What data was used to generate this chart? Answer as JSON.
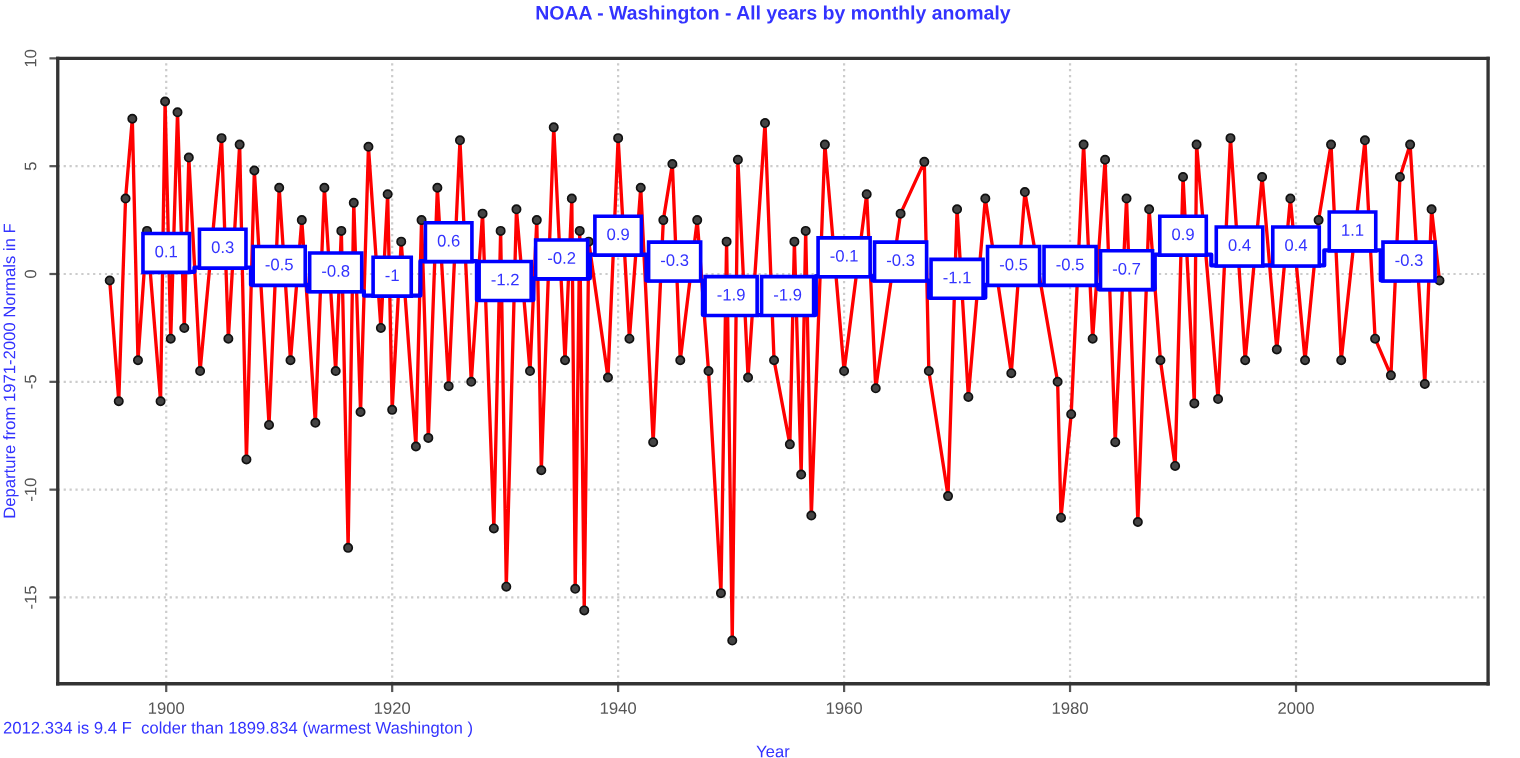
{
  "chart_data": {
    "type": "line",
    "title": "NOAA - Washington - All years by monthly anomaly",
    "xlabel": "Year",
    "ylabel": "Departure from 1971-2000 Normals in F",
    "annotations": [
      "2012.334 is 9.4 F  colder than 1899.834 (warmest Washington )"
    ],
    "xlim": [
      1890.4,
      2017
    ],
    "ylim": [
      -19,
      10
    ],
    "xticks": [
      1900,
      1920,
      1940,
      1960,
      1980,
      2000
    ],
    "yticks": [
      -15,
      -10,
      -5,
      0,
      5,
      10
    ],
    "grid": true,
    "legend": false,
    "series": [
      {
        "color": "#ff0000",
        "marker": "circle",
        "line_style": "solid",
        "x": [
          1895.0,
          1895.8,
          1896.4,
          1897.0,
          1897.5,
          1898.3,
          1899.5,
          1899.9,
          1900.4,
          1901.0,
          1901.6,
          1902.0,
          1903.0,
          1904.9,
          1905.5,
          1906.5,
          1907.1,
          1907.8,
          1909.1,
          1910.0,
          1911.0,
          1912.0,
          1913.2,
          1914.0,
          1915.0,
          1915.5,
          1916.1,
          1916.6,
          1917.2,
          1917.9,
          1919.0,
          1919.6,
          1920.0,
          1920.8,
          1922.1,
          1922.6,
          1923.2,
          1924.0,
          1925.0,
          1926.0,
          1927.0,
          1928.0,
          1929.0,
          1929.6,
          1930.1,
          1931.0,
          1932.2,
          1932.8,
          1933.2,
          1934.3,
          1935.3,
          1935.9,
          1936.2,
          1936.6,
          1937.0,
          1937.4,
          1939.1,
          1940.0,
          1941.0,
          1942.0,
          1943.1,
          1944.0,
          1944.8,
          1945.5,
          1947.0,
          1948.0,
          1949.1,
          1949.6,
          1950.1,
          1950.6,
          1951.5,
          1953.0,
          1953.8,
          1955.2,
          1955.6,
          1956.2,
          1956.6,
          1957.1,
          1958.3,
          1960.0,
          1962.0,
          1962.8,
          1965.0,
          1967.1,
          1967.5,
          1969.2,
          1970.0,
          1971.0,
          1972.5,
          1974.8,
          1976.0,
          1978.9,
          1979.2,
          1980.1,
          1981.2,
          1982.0,
          1983.1,
          1984.0,
          1985.0,
          1986.0,
          1987.0,
          1988.0,
          1989.3,
          1990.0,
          1991.0,
          1991.2,
          1993.1,
          1994.2,
          1995.5,
          1997.0,
          1998.3,
          1999.5,
          2000.8,
          2002.0,
          2003.1,
          2004.0,
          2006.1,
          2007.0,
          2008.4,
          2009.2,
          2010.1,
          2011.4,
          2012.0,
          2012.7
        ],
        "values": [
          -0.3,
          -5.9,
          3.5,
          7.2,
          -4.0,
          2.0,
          -5.9,
          8.0,
          -3.0,
          7.5,
          -2.5,
          5.4,
          -4.5,
          6.3,
          -3.0,
          6.0,
          -8.6,
          4.8,
          -7.0,
          4.0,
          -4.0,
          2.5,
          -6.9,
          4.0,
          -4.5,
          2.0,
          -12.7,
          3.3,
          -6.4,
          5.9,
          -2.5,
          3.7,
          -6.3,
          1.5,
          -8.0,
          2.5,
          -7.6,
          4.0,
          -5.2,
          6.2,
          -5.0,
          2.8,
          -11.8,
          2.0,
          -14.5,
          3.0,
          -4.5,
          2.5,
          -9.1,
          6.8,
          -4.0,
          3.5,
          -14.6,
          2.0,
          -15.6,
          1.5,
          -4.8,
          6.3,
          -3.0,
          4.0,
          -7.8,
          2.5,
          5.1,
          -4.0,
          2.5,
          -4.5,
          -14.8,
          1.5,
          -17.0,
          5.3,
          -4.8,
          7.0,
          -4.0,
          -7.9,
          1.5,
          -9.3,
          2.0,
          -11.2,
          6.0,
          -4.5,
          3.7,
          -5.3,
          2.8,
          5.2,
          -4.5,
          -10.3,
          3.0,
          -5.7,
          3.5,
          -4.6,
          3.8,
          -5.0,
          -11.3,
          -6.5,
          6.0,
          -3.0,
          5.3,
          -7.8,
          3.5,
          -11.5,
          3.0,
          -4.0,
          -8.9,
          4.5,
          -6.0,
          6.0,
          -5.8,
          6.3,
          -4.0,
          4.5,
          -3.5,
          3.5,
          -4.0,
          2.5,
          6.0,
          -4.0,
          6.2,
          -3.0,
          -4.7,
          4.5,
          6.0,
          -5.1,
          3.0,
          -0.3
        ]
      },
      {
        "type": "step",
        "color": "#0000ff",
        "marker": "none",
        "x": [
          1900,
          1905,
          1910,
          1915,
          1920,
          1925,
          1930,
          1935,
          1940,
          1945,
          1950,
          1955,
          1960,
          1965,
          1970,
          1975,
          1980,
          1985,
          1990,
          1995,
          2000,
          2005,
          2010
        ],
        "values": [
          0.1,
          0.3,
          -0.5,
          -0.8,
          -1,
          0.6,
          -1.2,
          -0.2,
          0.9,
          -0.3,
          -1.9,
          -1.9,
          -0.1,
          -0.3,
          -1.1,
          -0.5,
          -0.5,
          -0.7,
          0.9,
          0.4,
          0.4,
          1.1,
          -0.3
        ],
        "value_labels": [
          "0.1",
          "0.3",
          "-0.5",
          "-0.8",
          "-1",
          "0.6",
          "-1.2",
          "-0.2",
          "0.9",
          "-0.3",
          "-1.9",
          "-1.9",
          "-0.1",
          "-0.3",
          "-1.1",
          "-0.5",
          "-0.5",
          "-0.7",
          "0.9",
          "0.4",
          "0.4",
          "1.1",
          "-0.3"
        ]
      }
    ]
  }
}
